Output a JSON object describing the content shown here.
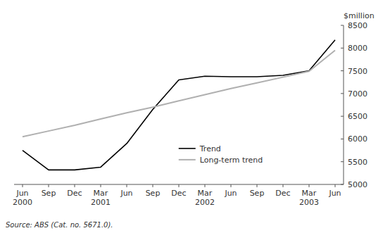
{
  "chart_data": {
    "type": "line",
    "y_label": "$million",
    "source": "Source: ABS (Cat. no. 5671.0).",
    "categories": [
      "Jun\n2000",
      "Sep",
      "Dec",
      "Mar\n2001",
      "Jun",
      "Sep",
      "Dec",
      "Mar\n2002",
      "Jun",
      "Sep",
      "Dec",
      "Mar\n2003",
      "Jun"
    ],
    "series": [
      {
        "name": "Trend",
        "color": "#000000",
        "values": [
          5750,
          5320,
          5320,
          5380,
          5900,
          6650,
          7300,
          7380,
          7370,
          7370,
          7400,
          7500,
          8180
        ]
      },
      {
        "name": "Long-term trend",
        "color": "#b0b0b0",
        "values": [
          6050,
          6175,
          6300,
          6440,
          6575,
          6700,
          6840,
          6975,
          7110,
          7235,
          7360,
          7490,
          7950
        ]
      }
    ],
    "ylim": [
      5000,
      8500
    ],
    "yticks": [
      5000,
      5500,
      6000,
      6500,
      7000,
      7500,
      8000,
      8500
    ],
    "grid": false,
    "legend": "lower right"
  }
}
